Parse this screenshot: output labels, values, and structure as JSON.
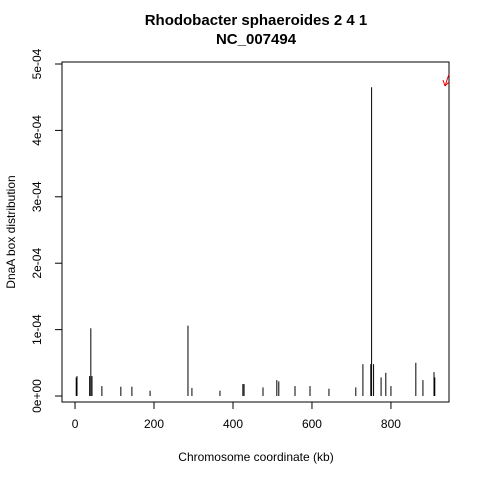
{
  "chart_data": {
    "type": "spike",
    "title": "Rhodobacter sphaeroides 2 4 1",
    "subtitle": "NC_007494",
    "x_label": "Chromosome coordinate (kb)",
    "y_label": "DnaA box distribution",
    "x": [
      3,
      5,
      37,
      40,
      43,
      68,
      116,
      144,
      190,
      286,
      296,
      367,
      425,
      428,
      476,
      511,
      516,
      557,
      595,
      643,
      711,
      729,
      749,
      751,
      756,
      775,
      787,
      800,
      863,
      881,
      909,
      911
    ],
    "values": [
      2.8e-05,
      3e-05,
      3e-05,
      0.000102,
      3e-05,
      1.5e-05,
      1.4e-05,
      1.4e-05,
      8e-06,
      0.000106,
      1.2e-05,
      8e-06,
      1.8e-05,
      1.8e-05,
      1.3e-05,
      2.4e-05,
      2.2e-05,
      1.5e-05,
      1.5e-05,
      1.1e-05,
      1.3e-05,
      4.8e-05,
      4.8e-05,
      0.000465,
      4.8e-05,
      2.8e-05,
      3.5e-05,
      1.5e-05,
      5e-05,
      2.4e-05,
      3.6e-05,
      2.8e-05
    ],
    "color": "#000000",
    "xlim": [
      -33,
      947
    ],
    "ylim": [
      -9e-06,
      0.000503
    ],
    "xticks": [
      0,
      200,
      400,
      600,
      800
    ],
    "yticks": [
      {
        "value": 0,
        "label": "0e+00"
      },
      {
        "value": 0.0001,
        "label": "1e-04"
      },
      {
        "value": 0.0002,
        "label": "2e-04"
      },
      {
        "value": 0.0003,
        "label": "3e-04"
      },
      {
        "value": 0.0004,
        "label": "4e-04"
      },
      {
        "value": 0.0005,
        "label": "5e-04"
      }
    ]
  }
}
